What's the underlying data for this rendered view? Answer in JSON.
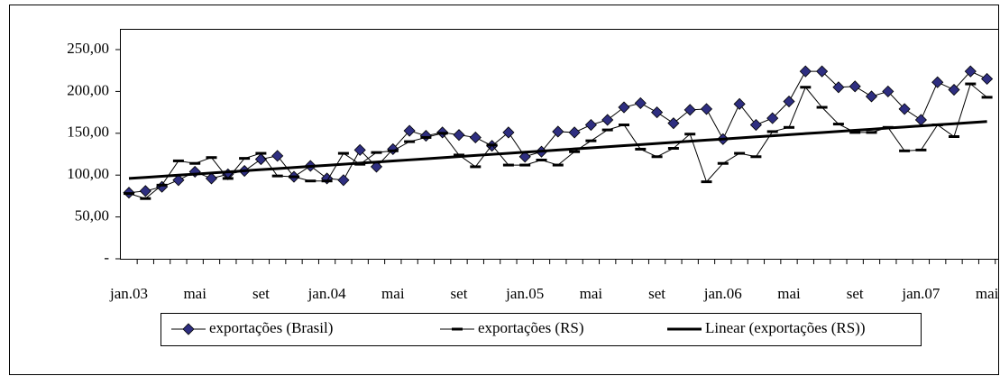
{
  "chart_data": {
    "type": "line",
    "categories": [
      "jan.03",
      null,
      null,
      null,
      "mai",
      null,
      null,
      null,
      "set",
      null,
      null,
      null,
      "jan.04",
      null,
      null,
      null,
      "mai",
      null,
      null,
      null,
      "set",
      null,
      null,
      null,
      "jan.05",
      null,
      null,
      null,
      "mai",
      null,
      null,
      null,
      "set",
      null,
      null,
      null,
      "jan.06",
      null,
      null,
      null,
      "mai",
      null,
      null,
      null,
      "set",
      null,
      null,
      null,
      "jan.07",
      null,
      null,
      null,
      "mai"
    ],
    "ylim": [
      0,
      250
    ],
    "yticks": [
      {
        "value": 0,
        "label": "-"
      },
      {
        "value": 50,
        "label": "50,00"
      },
      {
        "value": 100,
        "label": "100,00"
      },
      {
        "value": 150,
        "label": "150,00"
      },
      {
        "value": 200,
        "label": "200,00"
      },
      {
        "value": 250,
        "label": "250,00"
      }
    ],
    "grid": false,
    "legend": "bottom",
    "series": [
      {
        "name": "exportações (Brasil)",
        "color": "#2e2e80",
        "marker": "diamond",
        "values": [
          79,
          81,
          86,
          94,
          104,
          96,
          101,
          105,
          119,
          123,
          98,
          111,
          96,
          94,
          130,
          110,
          131,
          153,
          147,
          151,
          148,
          145,
          135,
          151,
          122,
          128,
          152,
          151,
          160,
          166,
          181,
          186,
          175,
          162,
          178,
          179,
          143,
          185,
          160,
          168,
          188,
          224,
          224,
          205,
          206,
          194,
          200,
          179,
          166,
          211,
          202,
          224,
          215
        ]
      },
      {
        "name": "exportações (RS)",
        "color": "#000000",
        "marker": "dash",
        "values": [
          78,
          72,
          88,
          117,
          114,
          121,
          96,
          120,
          126,
          99,
          98,
          93,
          93,
          126,
          113,
          127,
          129,
          140,
          145,
          150,
          124,
          110,
          136,
          112,
          112,
          118,
          112,
          128,
          141,
          154,
          160,
          131,
          122,
          132,
          149,
          92,
          114,
          126,
          122,
          152,
          157,
          205,
          181,
          161,
          151,
          151,
          157,
          129,
          130,
          160,
          146,
          209,
          193
        ]
      },
      {
        "name": "Linear (exportações (RS))",
        "color": "#000000",
        "marker": "none",
        "width": 3,
        "values": [
          96,
          97.3,
          98.6,
          99.9,
          101.2,
          102.5,
          103.8,
          105.2,
          106.5,
          107.8,
          109.1,
          110.4,
          111.7,
          113.0,
          114.3,
          115.6,
          116.9,
          118.2,
          119.5,
          120.8,
          122.2,
          123.5,
          124.8,
          126.1,
          127.4,
          128.7,
          130.0,
          131.3,
          132.6,
          133.9,
          135.2,
          136.5,
          137.8,
          139.2,
          140.5,
          141.8,
          143.1,
          144.4,
          145.7,
          147.0,
          148.3,
          149.6,
          150.9,
          152.2,
          153.5,
          154.8,
          156.2,
          157.5,
          158.8,
          160.1,
          161.4,
          162.7,
          164.0
        ]
      }
    ]
  }
}
